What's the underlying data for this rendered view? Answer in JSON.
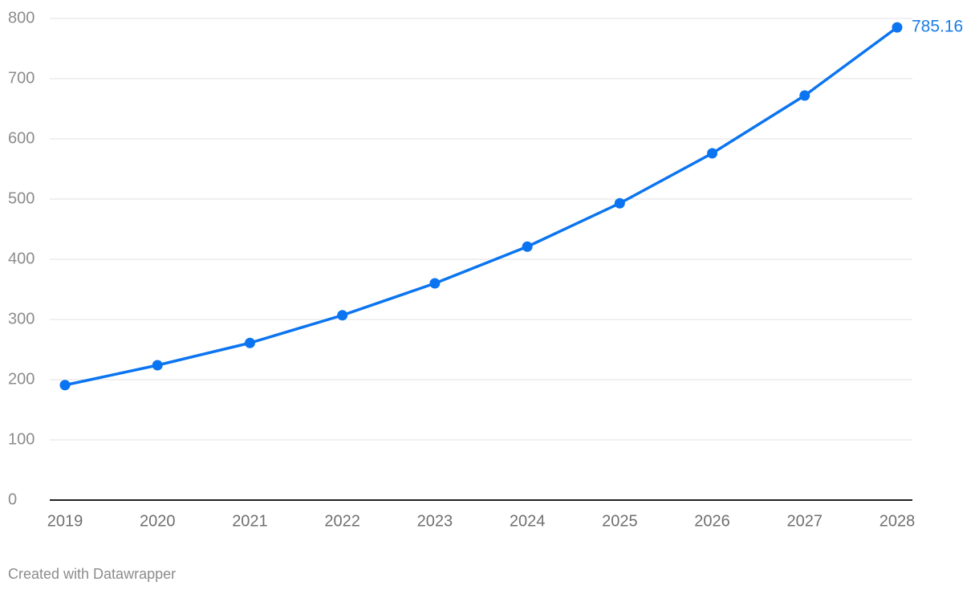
{
  "chart_data": {
    "type": "line",
    "categories": [
      "2019",
      "2020",
      "2021",
      "2022",
      "2023",
      "2024",
      "2025",
      "2026",
      "2027",
      "2028"
    ],
    "series": [
      {
        "color": "#0b74f0",
        "values": [
          191,
          224,
          261,
          307,
          360,
          421,
          493,
          576,
          672,
          785.16
        ]
      }
    ],
    "ylim": [
      0,
      800
    ],
    "yticks": [
      0,
      100,
      200,
      300,
      400,
      500,
      600,
      700,
      800
    ],
    "grid": true,
    "credit": "Created with Datawrapper"
  }
}
